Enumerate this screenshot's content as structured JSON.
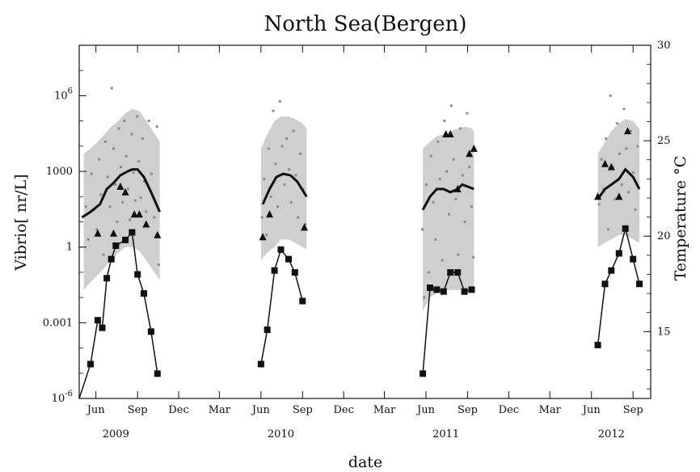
{
  "chart_data": {
    "type": "scatter",
    "title": "North Sea(Bergen)",
    "xlabel": "date",
    "ylabel": "Vibrio[ nr/L]",
    "y2label": "Temperature °C",
    "y_scale": "log",
    "ylim": [
      1e-06,
      100000000.0
    ],
    "y2lim": [
      11.5,
      30
    ],
    "xlim": [
      "2009-04-25",
      "2012-10-10"
    ],
    "x_tick_labels": [
      "Jun",
      "Sep",
      "Dec",
      "Mar",
      "Jun",
      "Sep",
      "Dec",
      "Mar",
      "Jun",
      "Sep",
      "Dec",
      "Mar",
      "Jun",
      "Sep"
    ],
    "x_tick_dates": [
      "2009-06-01",
      "2009-09-01",
      "2009-12-01",
      "2010-03-01",
      "2010-06-01",
      "2010-09-01",
      "2010-12-01",
      "2011-03-01",
      "2011-06-01",
      "2011-09-01",
      "2011-12-01",
      "2012-03-01",
      "2012-06-01",
      "2012-09-01"
    ],
    "year_labels": [
      "2009",
      "2010",
      "2011",
      "2012"
    ],
    "year_label_dates": [
      "2009-07-15",
      "2010-07-15",
      "2011-07-15",
      "2012-07-15"
    ],
    "y_tick_labels": [
      "10^-6",
      "0.001",
      "1",
      "1000",
      "10^6"
    ],
    "y_tick_values": [
      1e-06,
      0.001,
      1,
      1000,
      1000000
    ],
    "y2_tick_values": [
      15,
      20,
      25,
      30
    ],
    "grid": false,
    "colors": {
      "band": "#cfcfcf",
      "dots": "#8c8c8c",
      "lines": "#111111",
      "markers": "#111111"
    },
    "series": [
      {
        "kind": "band",
        "segments": [
          {
            "dates": [
              "2009-05-05",
              "2009-05-20",
              "2009-06-05",
              "2009-06-20",
              "2009-07-05",
              "2009-07-20",
              "2009-08-05",
              "2009-08-20",
              "2009-09-05",
              "2009-09-20",
              "2009-10-05",
              "2009-10-20"
            ],
            "upper": [
              5000,
              8000,
              15000,
              30000,
              60000,
              100000,
              200000,
              300000,
              250000,
              100000,
              40000,
              15000
            ],
            "lower": [
              0.02,
              0.04,
              0.08,
              0.15,
              0.3,
              0.6,
              1,
              1,
              0.7,
              0.3,
              0.12,
              0.05
            ]
          },
          {
            "dates": [
              "2010-06-01",
              "2010-06-15",
              "2010-07-01",
              "2010-07-15",
              "2010-08-01",
              "2010-08-15",
              "2010-09-01",
              "2010-09-10"
            ],
            "upper": [
              8000,
              30000,
              100000,
              150000,
              150000,
              120000,
              80000,
              50000
            ],
            "lower": [
              0.3,
              0.6,
              1,
              2,
              2,
              1.5,
              1,
              0.8
            ]
          },
          {
            "dates": [
              "2011-05-25",
              "2011-06-10",
              "2011-06-25",
              "2011-07-10",
              "2011-07-25",
              "2011-08-10",
              "2011-08-25",
              "2011-09-10",
              "2011-09-15"
            ],
            "upper": [
              8000,
              15000,
              25000,
              30000,
              40000,
              50000,
              60000,
              50000,
              40000
            ],
            "lower": [
              0.003,
              0.01,
              0.015,
              0.02,
              0.02,
              0.02,
              0.02,
              0.02,
              0.02
            ]
          },
          {
            "dates": [
              "2012-06-15",
              "2012-07-01",
              "2012-07-15",
              "2012-08-01",
              "2012-08-15",
              "2012-09-01",
              "2012-09-15"
            ],
            "upper": [
              5000,
              15000,
              40000,
              80000,
              120000,
              100000,
              50000
            ],
            "lower": [
              1,
              1.5,
              2,
              3,
              3,
              2,
              1.5
            ]
          }
        ]
      },
      {
        "kind": "mean",
        "segments": [
          {
            "dates": [
              "2009-05-01",
              "2009-05-20",
              "2009-06-10",
              "2009-06-25",
              "2009-07-10",
              "2009-07-25",
              "2009-08-10",
              "2009-08-20",
              "2009-09-01",
              "2009-09-15",
              "2009-10-01",
              "2009-10-20"
            ],
            "values": [
              15,
              25,
              50,
              200,
              350,
              700,
              1000,
              1200,
              1200,
              600,
              150,
              25
            ]
          },
          {
            "dates": [
              "2010-06-05",
              "2010-06-20",
              "2010-07-05",
              "2010-07-20",
              "2010-08-05",
              "2010-08-20",
              "2010-09-10"
            ],
            "values": [
              50,
              200,
              600,
              800,
              700,
              400,
              100
            ]
          },
          {
            "dates": [
              "2011-05-25",
              "2011-06-10",
              "2011-06-25",
              "2011-07-10",
              "2011-07-25",
              "2011-08-10",
              "2011-08-20",
              "2011-09-01",
              "2011-09-15"
            ],
            "values": [
              30,
              100,
              200,
              200,
              150,
              200,
              300,
              250,
              200
            ]
          },
          {
            "dates": [
              "2012-06-15",
              "2012-07-01",
              "2012-07-15",
              "2012-08-01",
              "2012-08-15",
              "2012-09-01",
              "2012-09-15"
            ],
            "values": [
              80,
              200,
              300,
              500,
              1200,
              600,
              200
            ]
          }
        ]
      },
      {
        "kind": "temperature",
        "axis": "right",
        "segments": [
          {
            "dates": [
              "2009-04-25",
              "2009-05-20",
              "2009-06-05",
              "2009-06-15",
              "2009-06-25",
              "2009-07-05",
              "2009-07-15",
              "2009-08-05",
              "2009-08-20",
              "2009-09-01",
              "2009-09-15",
              "2009-10-01",
              "2009-10-15"
            ],
            "values": [
              11.5,
              13.3,
              15.6,
              15.2,
              17.8,
              18.8,
              19.5,
              19.8,
              20.2,
              18,
              17,
              15,
              12.8
            ]
          },
          {
            "dates": [
              "2010-06-01",
              "2010-06-15",
              "2010-07-01",
              "2010-07-15",
              "2010-08-01",
              "2010-08-15",
              "2010-09-01"
            ],
            "values": [
              13.3,
              15.1,
              18.2,
              19.3,
              18.8,
              18.1,
              16.6
            ]
          },
          {
            "dates": [
              "2011-05-25",
              "2011-06-10",
              "2011-06-25",
              "2011-07-10",
              "2011-07-25",
              "2011-08-10",
              "2011-08-25",
              "2011-09-10"
            ],
            "values": [
              12.8,
              17.3,
              17.2,
              17.1,
              18.1,
              18.1,
              17.1,
              17.2
            ]
          },
          {
            "dates": [
              "2012-06-15",
              "2012-07-01",
              "2012-07-15",
              "2012-08-01",
              "2012-08-15",
              "2012-09-01",
              "2012-09-15"
            ],
            "values": [
              14.3,
              17.5,
              18.2,
              19.1,
              20.4,
              18.8,
              17.5
            ]
          }
        ]
      },
      {
        "kind": "triangles",
        "points": [
          {
            "date": "2009-06-05",
            "value": 3.5
          },
          {
            "date": "2009-07-10",
            "value": 3.5
          },
          {
            "date": "2009-07-25",
            "value": 250
          },
          {
            "date": "2009-08-05",
            "value": 150
          },
          {
            "date": "2009-08-25",
            "value": 20
          },
          {
            "date": "2009-09-05",
            "value": 20
          },
          {
            "date": "2009-09-20",
            "value": 8
          },
          {
            "date": "2009-10-15",
            "value": 3
          },
          {
            "date": "2010-06-05",
            "value": 2.5
          },
          {
            "date": "2010-06-20",
            "value": 20
          },
          {
            "date": "2010-09-05",
            "value": 6
          },
          {
            "date": "2011-07-15",
            "value": 30000
          },
          {
            "date": "2011-07-25",
            "value": 30000
          },
          {
            "date": "2011-08-10",
            "value": 200
          },
          {
            "date": "2011-09-05",
            "value": 5000
          },
          {
            "date": "2011-09-15",
            "value": 8000
          },
          {
            "date": "2012-06-15",
            "value": 100
          },
          {
            "date": "2012-07-01",
            "value": 2000
          },
          {
            "date": "2012-07-15",
            "value": 1500
          },
          {
            "date": "2012-08-01",
            "value": 100
          },
          {
            "date": "2012-08-20",
            "value": 40000
          }
        ]
      },
      {
        "kind": "samples",
        "points": [
          {
            "date": "2009-05-10",
            "value": 40
          },
          {
            "date": "2009-05-15",
            "value": 2
          },
          {
            "date": "2009-05-22",
            "value": 800
          },
          {
            "date": "2009-05-28",
            "value": 30
          },
          {
            "date": "2009-06-03",
            "value": 5
          },
          {
            "date": "2009-06-08",
            "value": 3000
          },
          {
            "date": "2009-06-12",
            "value": 120
          },
          {
            "date": "2009-06-18",
            "value": 0.5
          },
          {
            "date": "2009-06-22",
            "value": 15000
          },
          {
            "date": "2009-06-27",
            "value": 600
          },
          {
            "date": "2009-07-02",
            "value": 40
          },
          {
            "date": "2009-07-06",
            "value": 2000000
          },
          {
            "date": "2009-07-10",
            "value": 8000
          },
          {
            "date": "2009-07-14",
            "value": 300
          },
          {
            "date": "2009-07-18",
            "value": 10
          },
          {
            "date": "2009-07-22",
            "value": 50000
          },
          {
            "date": "2009-07-26",
            "value": 1500
          },
          {
            "date": "2009-07-30",
            "value": 60
          },
          {
            "date": "2009-08-03",
            "value": 100000
          },
          {
            "date": "2009-08-07",
            "value": 4000
          },
          {
            "date": "2009-08-11",
            "value": 200
          },
          {
            "date": "2009-08-15",
            "value": 12
          },
          {
            "date": "2009-08-19",
            "value": 30000
          },
          {
            "date": "2009-08-23",
            "value": 900
          },
          {
            "date": "2009-08-27",
            "value": 70
          },
          {
            "date": "2009-08-31",
            "value": 150000
          },
          {
            "date": "2009-09-04",
            "value": 2500
          },
          {
            "date": "2009-09-08",
            "value": 90
          },
          {
            "date": "2009-09-12",
            "value": 20000
          },
          {
            "date": "2009-09-16",
            "value": 400
          },
          {
            "date": "2009-09-20",
            "value": 25
          },
          {
            "date": "2009-09-26",
            "value": 100000
          },
          {
            "date": "2009-10-02",
            "value": 800
          },
          {
            "date": "2009-10-08",
            "value": 15
          },
          {
            "date": "2009-10-14",
            "value": 60000
          },
          {
            "date": "2009-10-18",
            "value": 0.2
          },
          {
            "date": "2010-06-03",
            "value": 15
          },
          {
            "date": "2010-06-08",
            "value": 500
          },
          {
            "date": "2010-06-13",
            "value": 3
          },
          {
            "date": "2010-06-18",
            "value": 8000
          },
          {
            "date": "2010-06-23",
            "value": 100
          },
          {
            "date": "2010-06-28",
            "value": 250000
          },
          {
            "date": "2010-07-03",
            "value": 2000
          },
          {
            "date": "2010-07-08",
            "value": 40
          },
          {
            "date": "2010-07-13",
            "value": 600000
          },
          {
            "date": "2010-07-18",
            "value": 10000
          },
          {
            "date": "2010-07-23",
            "value": 300
          },
          {
            "date": "2010-07-28",
            "value": 20000
          },
          {
            "date": "2010-08-02",
            "value": 1200
          },
          {
            "date": "2010-08-07",
            "value": 60
          },
          {
            "date": "2010-08-12",
            "value": 40000
          },
          {
            "date": "2010-08-17",
            "value": 700
          },
          {
            "date": "2010-08-22",
            "value": 15
          },
          {
            "date": "2010-08-27",
            "value": 5000
          },
          {
            "date": "2010-09-02",
            "value": 200
          },
          {
            "date": "2010-09-07",
            "value": 8
          },
          {
            "date": "2011-05-24",
            "value": 5
          },
          {
            "date": "2011-05-28",
            "value": 0.01
          },
          {
            "date": "2011-06-02",
            "value": 300
          },
          {
            "date": "2011-06-07",
            "value": 0.1
          },
          {
            "date": "2011-06-12",
            "value": 4000
          },
          {
            "date": "2011-06-17",
            "value": 60
          },
          {
            "date": "2011-06-22",
            "value": 2
          },
          {
            "date": "2011-06-27",
            "value": 15000
          },
          {
            "date": "2011-07-02",
            "value": 500
          },
          {
            "date": "2011-07-07",
            "value": 0.3
          },
          {
            "date": "2011-07-12",
            "value": 100000
          },
          {
            "date": "2011-07-17",
            "value": 1000
          },
          {
            "date": "2011-07-22",
            "value": 20
          },
          {
            "date": "2011-07-27",
            "value": 400000
          },
          {
            "date": "2011-08-01",
            "value": 3000
          },
          {
            "date": "2011-08-06",
            "value": 80
          },
          {
            "date": "2011-08-11",
            "value": 0.5
          },
          {
            "date": "2011-08-16",
            "value": 50000
          },
          {
            "date": "2011-08-21",
            "value": 700
          },
          {
            "date": "2011-08-26",
            "value": 10
          },
          {
            "date": "2011-08-31",
            "value": 200000
          },
          {
            "date": "2011-09-05",
            "value": 1500
          },
          {
            "date": "2011-09-10",
            "value": 40
          },
          {
            "date": "2011-09-14",
            "value": 0.4
          },
          {
            "date": "2012-06-18",
            "value": 50
          },
          {
            "date": "2012-06-23",
            "value": 3000
          },
          {
            "date": "2012-06-28",
            "value": 200
          },
          {
            "date": "2012-07-03",
            "value": 20000
          },
          {
            "date": "2012-07-08",
            "value": 5
          },
          {
            "date": "2012-07-13",
            "value": 1000000
          },
          {
            "date": "2012-07-18",
            "value": 1500
          },
          {
            "date": "2012-07-23",
            "value": 80
          },
          {
            "date": "2012-07-28",
            "value": 80000
          },
          {
            "date": "2012-08-02",
            "value": 5000
          },
          {
            "date": "2012-08-07",
            "value": 300
          },
          {
            "date": "2012-08-12",
            "value": 300000
          },
          {
            "date": "2012-08-17",
            "value": 8000
          },
          {
            "date": "2012-08-22",
            "value": 150
          },
          {
            "date": "2012-08-27",
            "value": 40000
          },
          {
            "date": "2012-09-01",
            "value": 900
          },
          {
            "date": "2012-09-06",
            "value": 30
          },
          {
            "date": "2012-09-11",
            "value": 10000
          }
        ]
      }
    ]
  }
}
